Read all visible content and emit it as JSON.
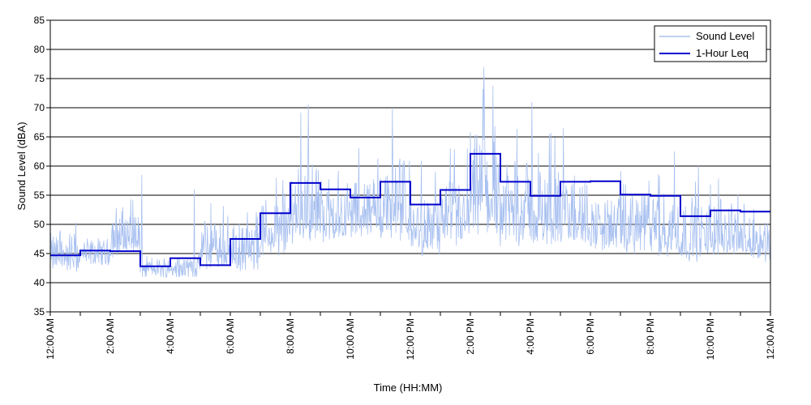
{
  "chart_data": {
    "type": "line",
    "xlabel": "Time (HH:MM)",
    "ylabel": "Sound Level (dBA)",
    "ylim": [
      35,
      85
    ],
    "yticks": [
      35,
      40,
      45,
      50,
      55,
      60,
      65,
      70,
      75,
      80,
      85
    ],
    "xlim_hours": [
      0,
      24
    ],
    "xtick_hours": [
      0,
      2,
      4,
      6,
      8,
      10,
      12,
      14,
      16,
      18,
      20,
      22,
      24
    ],
    "xtick_labels": [
      "12:00 AM",
      "2:00 AM",
      "4:00 AM",
      "6:00 AM",
      "8:00 AM",
      "10:00 AM",
      "12:00 PM",
      "2:00 PM",
      "4:00 PM",
      "6:00 PM",
      "8:00 PM",
      "10:00 PM",
      "12:00 AM"
    ],
    "grid": "horizontal",
    "legend_position": "top-right",
    "colors": {
      "sound_level": "#a8c0f0",
      "leq": "#0000cc"
    },
    "series": [
      {
        "name": "Sound Level",
        "hourly_range": [
          [
            41,
            52
          ],
          [
            43,
            49
          ],
          [
            43,
            58
          ],
          [
            41,
            45
          ],
          [
            41,
            46
          ],
          [
            41,
            56
          ],
          [
            41,
            54
          ],
          [
            43,
            60
          ],
          [
            44,
            70
          ],
          [
            45,
            64
          ],
          [
            46,
            64
          ],
          [
            44,
            70
          ],
          [
            43,
            61
          ],
          [
            44,
            64
          ],
          [
            44,
            77
          ],
          [
            43,
            71
          ],
          [
            44,
            67
          ],
          [
            44,
            65
          ],
          [
            44,
            60
          ],
          [
            43,
            63
          ],
          [
            42,
            62
          ],
          [
            42,
            60
          ],
          [
            43,
            60
          ],
          [
            43,
            55
          ]
        ],
        "peaks": [
          [
            3.05,
            58.5
          ],
          [
            4.8,
            56
          ],
          [
            8.6,
            70.5
          ],
          [
            11.4,
            70
          ],
          [
            13.9,
            63
          ],
          [
            14.45,
            77
          ],
          [
            16.05,
            71
          ],
          [
            17.1,
            66.5
          ],
          [
            20.8,
            62.5
          ],
          [
            21.6,
            60
          ]
        ]
      },
      {
        "name": "1-Hour Leq",
        "x_hours": [
          0,
          1,
          2,
          3,
          4,
          5,
          6,
          7,
          8,
          9,
          10,
          11,
          12,
          13,
          14,
          15,
          16,
          17,
          18,
          19,
          20,
          21,
          22,
          23
        ],
        "values": [
          44.7,
          45.5,
          45.4,
          42.8,
          44.2,
          43.0,
          47.5,
          51.9,
          57.1,
          56.0,
          54.6,
          57.3,
          53.4,
          55.9,
          62.1,
          57.3,
          54.9,
          57.3,
          57.4,
          55.1,
          54.9,
          51.4,
          52.4,
          52.2
        ]
      }
    ]
  }
}
